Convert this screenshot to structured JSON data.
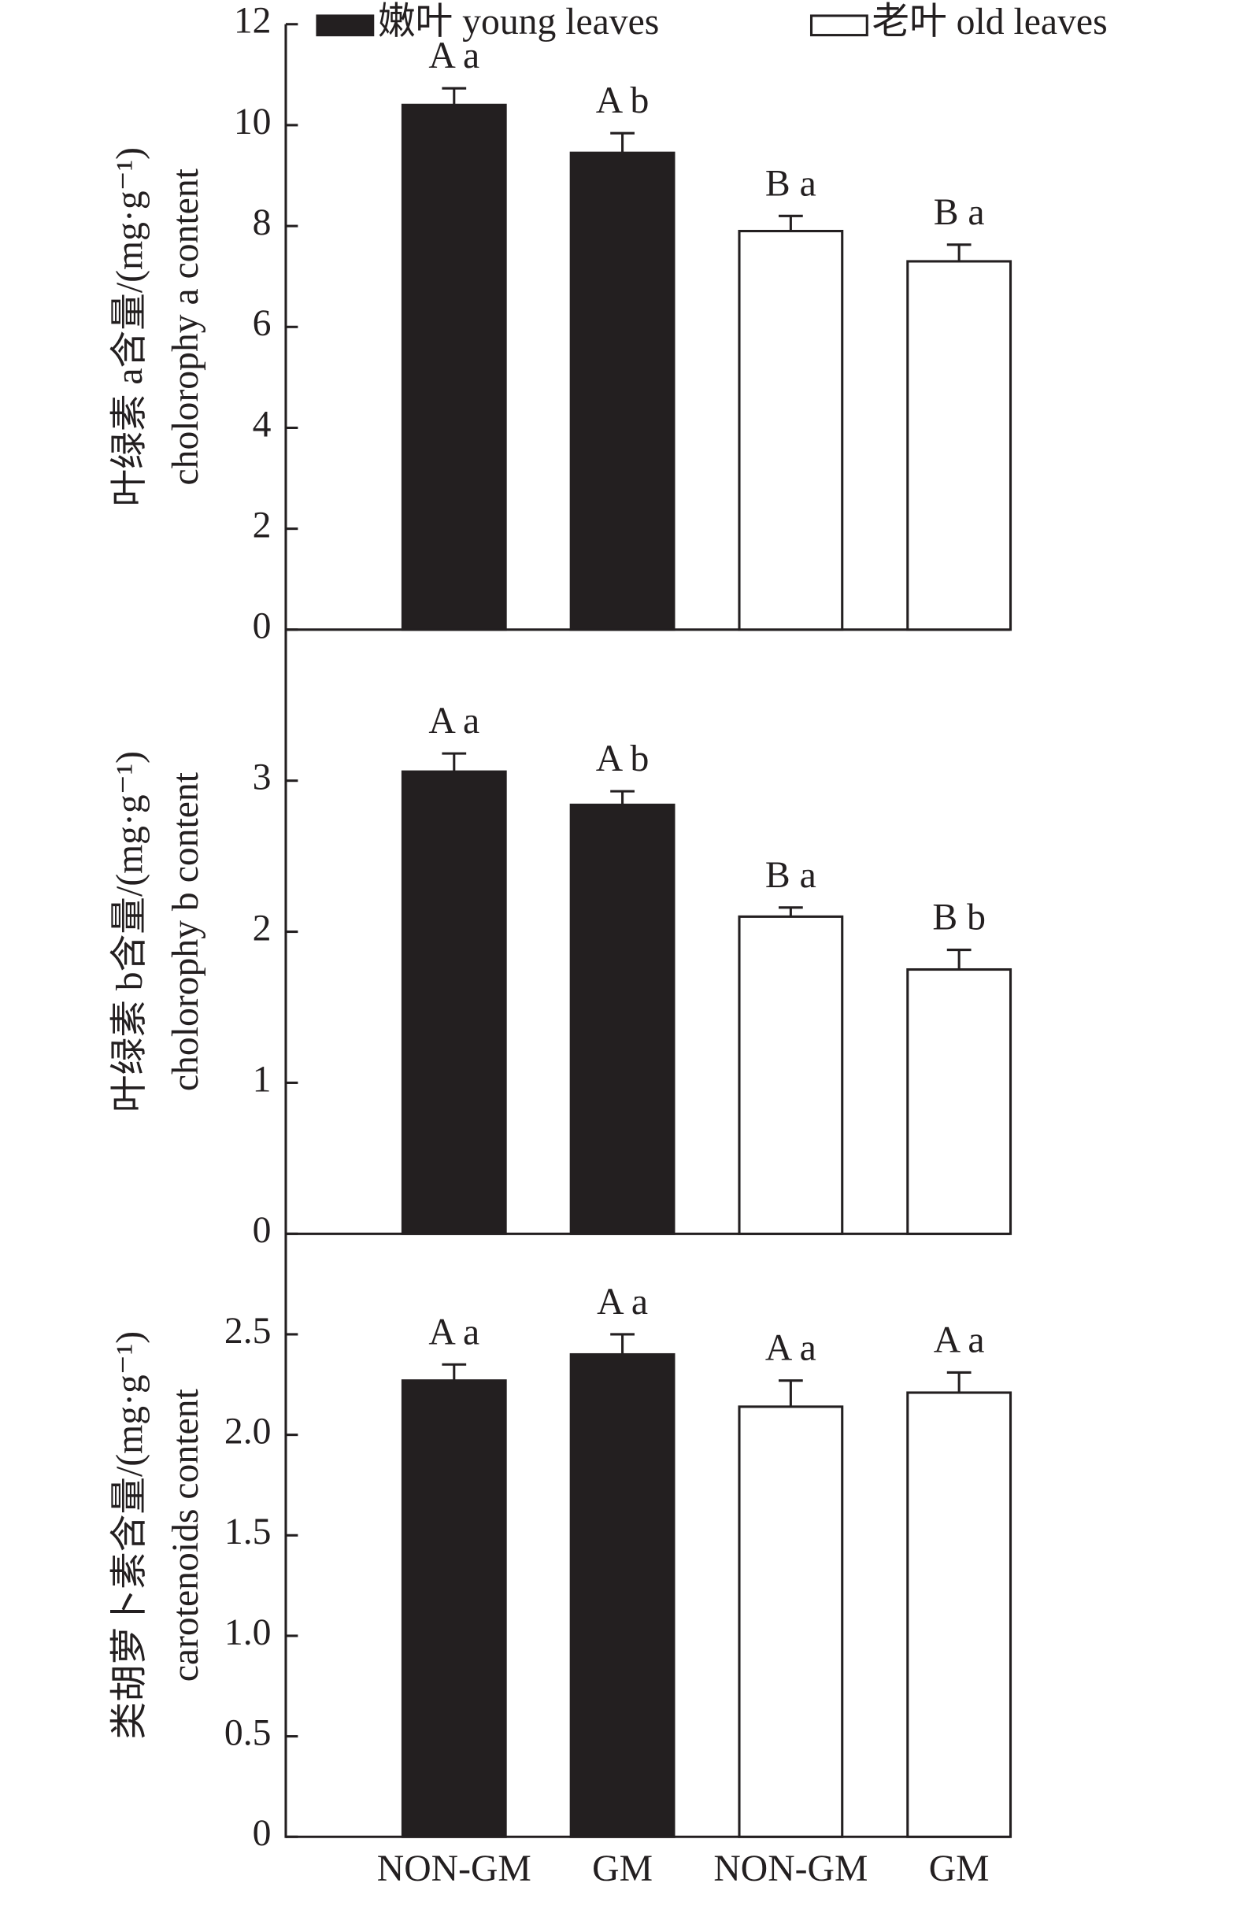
{
  "chart_data": [
    {
      "type": "bar",
      "ylabel": [
        "叶绿素 a含量/(mg·g⁻¹)",
        "cholorophy a content"
      ],
      "ylim": [
        0,
        12
      ],
      "yticks": [
        0,
        2,
        4,
        6,
        8,
        10,
        12
      ],
      "series": [
        {
          "name": "嫩叶 young leaves",
          "color": "#231f20",
          "values": [
            10.4,
            9.45,
            null,
            null
          ],
          "errors": [
            0.33,
            0.39,
            null,
            null
          ],
          "annotations": [
            "A a",
            "A b",
            null,
            null
          ]
        },
        {
          "name": "老叶 old leaves",
          "color": "#ffffff",
          "values": [
            null,
            null,
            7.9,
            7.3
          ],
          "errors": [
            null,
            null,
            0.3,
            0.33
          ],
          "annotations": [
            null,
            null,
            "B a",
            "B a"
          ]
        }
      ]
    },
    {
      "type": "bar",
      "ylabel": [
        "叶绿素 b含量/(mg·g⁻¹)",
        "cholorophy b content"
      ],
      "ylim": [
        0,
        4
      ],
      "yticks": [
        0,
        1,
        2,
        3
      ],
      "series": [
        {
          "color": "#231f20",
          "values": [
            3.06,
            2.84,
            null,
            null
          ],
          "errors": [
            0.12,
            0.09,
            null,
            null
          ],
          "annotations": [
            "A a",
            "A b",
            null,
            null
          ]
        },
        {
          "color": "#ffffff",
          "values": [
            null,
            null,
            2.1,
            1.75
          ],
          "errors": [
            null,
            null,
            0.06,
            0.13
          ],
          "annotations": [
            null,
            null,
            "B a",
            "B b"
          ]
        }
      ]
    },
    {
      "type": "bar",
      "ylabel": [
        "类胡萝卜素含量/(mg·g⁻¹)",
        "carotenoids content"
      ],
      "categories": [
        "NON-GM",
        "GM",
        "NON-GM",
        "GM"
      ],
      "ylim": [
        0,
        3
      ],
      "yticks": [
        0,
        0.5,
        {
          "value": 1,
          "label": "1.0"
        },
        1.5,
        {
          "value": 2,
          "label": "2.0"
        },
        2.5
      ],
      "series": [
        {
          "color": "#231f20",
          "values": [
            2.27,
            2.4,
            null,
            null
          ],
          "errors": [
            0.08,
            0.1,
            null,
            null
          ],
          "annotations": [
            "A a",
            "A a",
            null,
            null
          ]
        },
        {
          "color": "#ffffff",
          "values": [
            null,
            null,
            2.14,
            2.21
          ],
          "errors": [
            null,
            null,
            0.13,
            0.1
          ],
          "annotations": [
            null,
            null,
            "A a",
            "A a"
          ]
        }
      ]
    }
  ]
}
